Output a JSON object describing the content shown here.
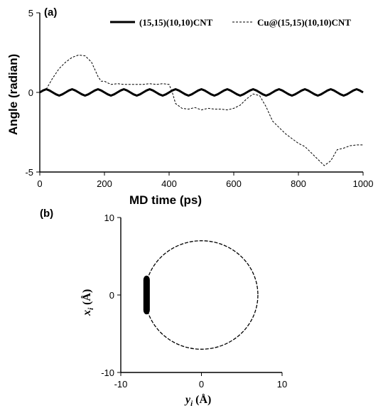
{
  "chart_data": [
    {
      "panel": "(a)",
      "type": "line",
      "xlabel": "MD time (ps)",
      "ylabel": "Angle (radian)",
      "xlim": [
        0,
        1000
      ],
      "ylim": [
        -5,
        5
      ],
      "xticks": [
        0,
        200,
        400,
        600,
        800,
        1000
      ],
      "yticks": [
        -5,
        0,
        5
      ],
      "xtick_labels": [
        "0",
        "200",
        "400",
        "600",
        "800",
        "1000"
      ],
      "ytick_labels": [
        "-5",
        "0",
        "5"
      ],
      "legend_position": "top-right",
      "grid": false,
      "series": [
        {
          "name": "(15,15)(10,10)CNT",
          "style": "solid-thick",
          "color": "#000000",
          "x": [
            0,
            10,
            20,
            30,
            40,
            50,
            60,
            70,
            80,
            90,
            100,
            110,
            120,
            130,
            140,
            150,
            160,
            170,
            180,
            190,
            200,
            210,
            220,
            230,
            240,
            250,
            260,
            270,
            280,
            290,
            300,
            310,
            320,
            330,
            340,
            350,
            360,
            370,
            380,
            390,
            400,
            410,
            420,
            430,
            440,
            450,
            460,
            470,
            480,
            490,
            500,
            510,
            520,
            530,
            540,
            550,
            560,
            570,
            580,
            590,
            600,
            610,
            620,
            630,
            640,
            650,
            660,
            670,
            680,
            690,
            700,
            710,
            720,
            730,
            740,
            750,
            760,
            770,
            780,
            790,
            800,
            810,
            820,
            830,
            840,
            850,
            860,
            870,
            880,
            890,
            900,
            910,
            920,
            930,
            940,
            950,
            960,
            970,
            980,
            990,
            1000
          ],
          "y": [
            0.0,
            0.12,
            0.2,
            0.12,
            0.0,
            -0.12,
            -0.2,
            -0.12,
            0.0,
            0.12,
            0.2,
            0.12,
            0.0,
            -0.12,
            -0.2,
            -0.12,
            0.0,
            0.12,
            0.2,
            0.12,
            0.0,
            -0.12,
            -0.2,
            -0.12,
            0.0,
            0.12,
            0.2,
            0.12,
            0.0,
            -0.12,
            -0.2,
            -0.12,
            0.0,
            0.12,
            0.2,
            0.12,
            0.0,
            -0.12,
            -0.2,
            -0.12,
            0.0,
            0.12,
            0.2,
            0.12,
            0.0,
            -0.12,
            -0.2,
            -0.12,
            0.0,
            0.12,
            0.2,
            0.12,
            0.0,
            -0.12,
            -0.2,
            -0.12,
            0.0,
            0.12,
            0.2,
            0.12,
            0.0,
            -0.12,
            -0.2,
            -0.12,
            0.0,
            0.12,
            0.2,
            0.12,
            0.0,
            -0.12,
            -0.2,
            -0.12,
            0.0,
            0.12,
            0.2,
            0.12,
            0.0,
            -0.12,
            -0.2,
            -0.12,
            0.0,
            0.12,
            0.2,
            0.12,
            0.0,
            -0.12,
            -0.2,
            -0.12,
            0.0,
            0.12,
            0.2,
            0.12,
            0.0,
            -0.12,
            -0.2,
            -0.12,
            0.0,
            0.12,
            0.2,
            0.12,
            0.0
          ]
        },
        {
          "name": "Cu@(15,15)(10,10)CNT",
          "style": "dashed",
          "color": "#000000",
          "x": [
            0,
            20,
            40,
            60,
            80,
            100,
            120,
            140,
            160,
            180,
            190,
            200,
            220,
            240,
            260,
            280,
            300,
            320,
            340,
            360,
            380,
            400,
            410,
            420,
            440,
            460,
            480,
            500,
            520,
            540,
            560,
            580,
            600,
            620,
            640,
            660,
            680,
            700,
            720,
            740,
            760,
            780,
            800,
            820,
            840,
            860,
            880,
            900,
            920,
            940,
            960,
            980,
            1000
          ],
          "y": [
            0.0,
            0.2,
            0.9,
            1.5,
            1.9,
            2.2,
            2.35,
            2.3,
            1.9,
            1.0,
            0.7,
            0.7,
            0.5,
            0.55,
            0.5,
            0.5,
            0.5,
            0.5,
            0.55,
            0.5,
            0.55,
            0.5,
            0.0,
            -0.7,
            -1.0,
            -1.05,
            -0.95,
            -1.1,
            -1.0,
            -1.05,
            -1.05,
            -1.1,
            -1.0,
            -0.8,
            -0.4,
            -0.1,
            -0.2,
            -0.9,
            -1.8,
            -2.2,
            -2.6,
            -2.9,
            -3.2,
            -3.4,
            -3.8,
            -4.2,
            -4.6,
            -4.3,
            -3.6,
            -3.5,
            -3.35,
            -3.3,
            -3.3
          ]
        }
      ]
    },
    {
      "panel": "(b)",
      "type": "scatter",
      "xlabel": "y_i (Å)",
      "ylabel": "x_i (Å)",
      "xlabel_parts": {
        "var": "y",
        "sub": "i",
        "unit": " (Å)"
      },
      "ylabel_parts": {
        "var": "x",
        "sub": "i",
        "unit": " (Å)"
      },
      "xlim": [
        -10,
        10
      ],
      "ylim": [
        -10,
        10
      ],
      "xticks": [
        -10,
        0,
        10
      ],
      "yticks": [
        -10,
        0,
        10
      ],
      "xtick_labels": [
        "-10",
        "0",
        "10"
      ],
      "ytick_labels": [
        "-10",
        "0",
        "10"
      ],
      "grid": false,
      "series": [
        {
          "description_shape": "ring",
          "center": [
            0,
            0
          ],
          "radius": 7,
          "style": "dotted-ring",
          "color": "#000000"
        },
        {
          "description_shape": "cluster",
          "y_range": [
            -7.2,
            -6.4
          ],
          "x_range": [
            -2.5,
            2.5
          ],
          "style": "dense",
          "color": "#000000"
        }
      ]
    }
  ]
}
